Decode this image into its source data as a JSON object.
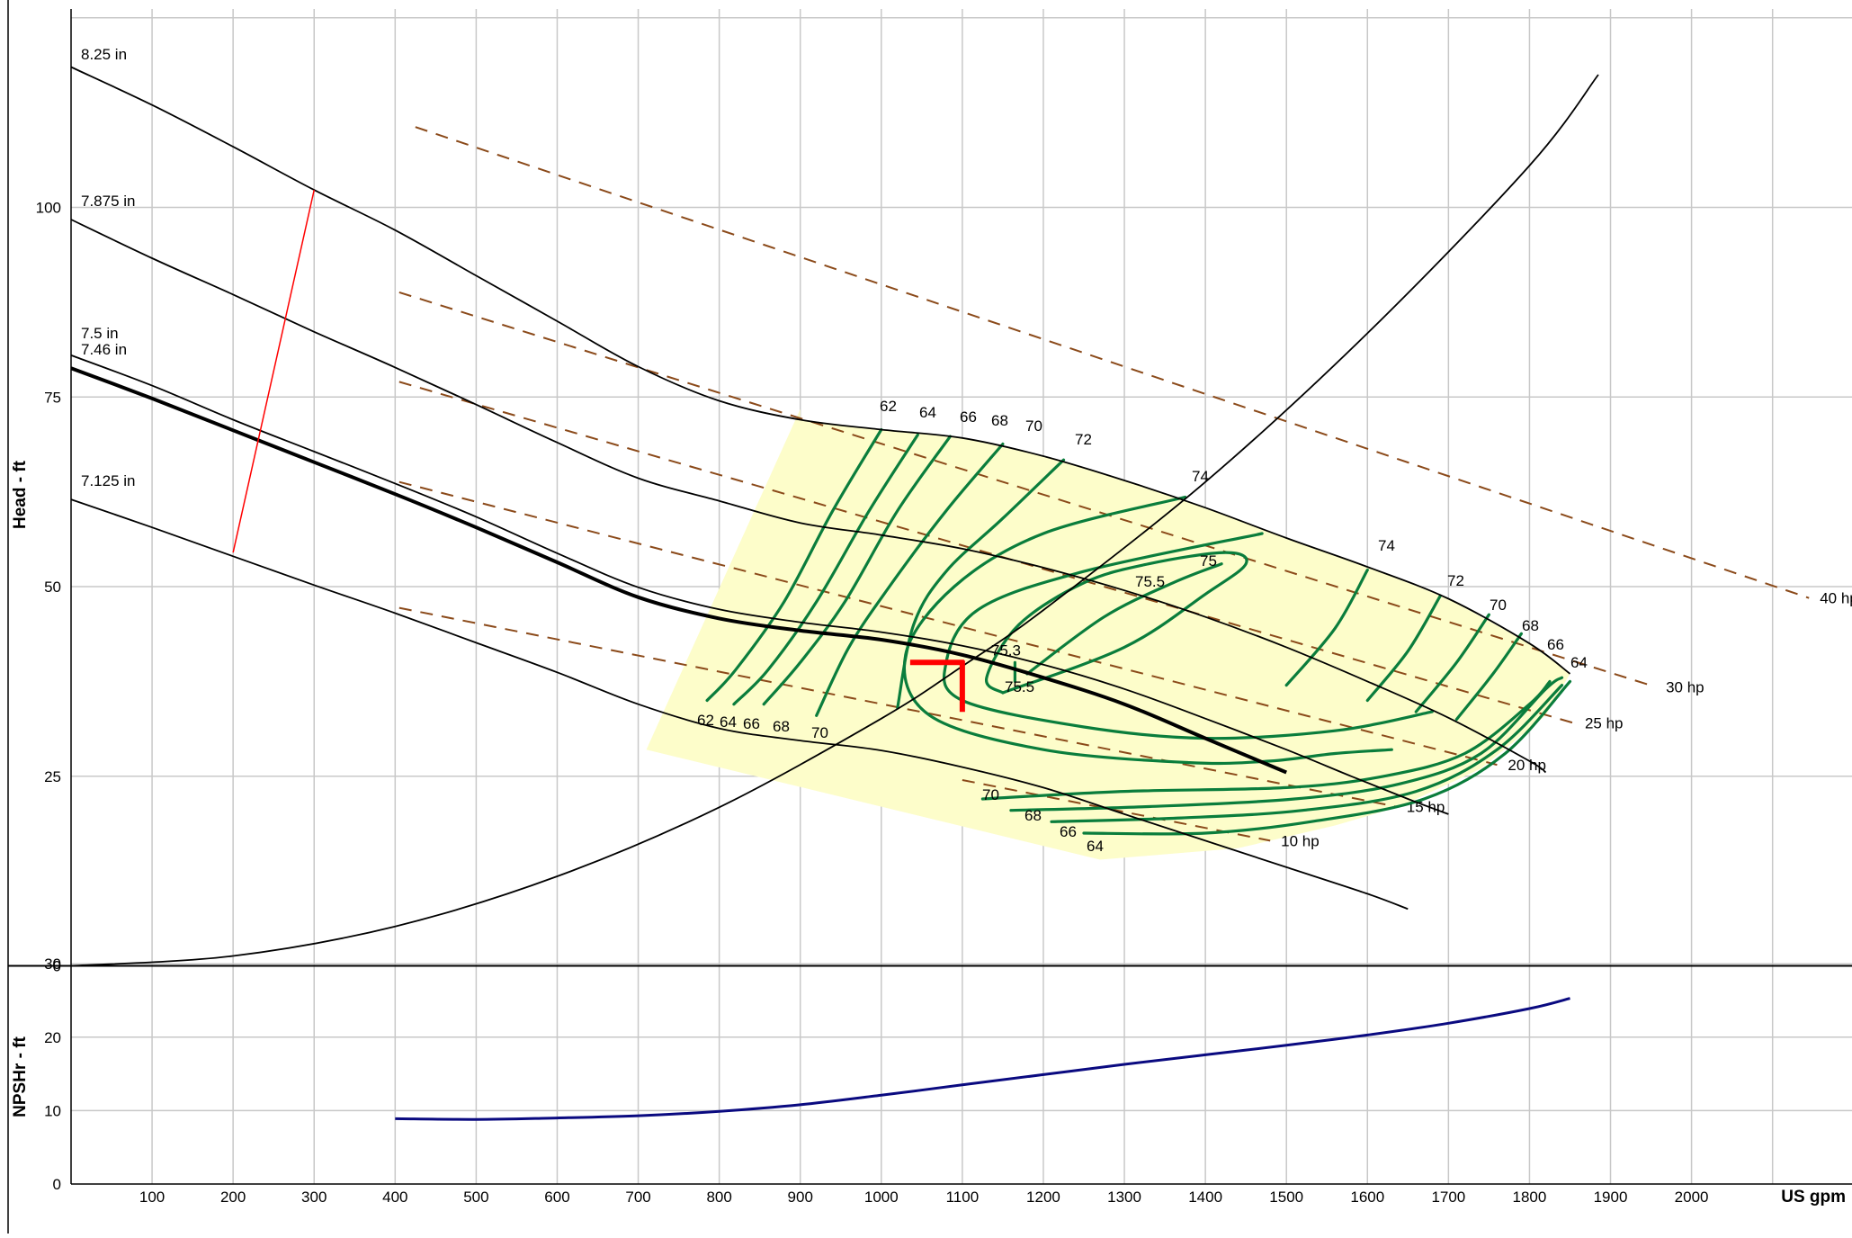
{
  "chart_data": {
    "type": "line",
    "title": "",
    "xlabel": "US gpm",
    "head_axis": {
      "label": "Head - ft",
      "ticks": [
        "0",
        "25",
        "50",
        "75",
        "100"
      ],
      "ylim": [
        0,
        126
      ]
    },
    "npsh_axis": {
      "label": "NPSHr - ft",
      "ticks": [
        "0",
        "10",
        "20",
        "30"
      ],
      "ylim": [
        0,
        31
      ]
    },
    "x_ticks": [
      "100",
      "200",
      "300",
      "400",
      "500",
      "600",
      "700",
      "800",
      "900",
      "1000",
      "1100",
      "1200",
      "1300",
      "1400",
      "1500",
      "1600",
      "1700",
      "1800",
      "1900",
      "2000"
    ],
    "xlim": [
      0,
      2210
    ],
    "grid": true,
    "impeller_curves": [
      {
        "name": "8.25 in",
        "x": [
          0,
          100,
          200,
          300,
          400,
          500,
          600,
          700,
          800,
          900,
          1000,
          1100,
          1200,
          1300,
          1400,
          1500,
          1600,
          1700,
          1800,
          1850
        ],
        "y": [
          118.5,
          113.5,
          108,
          102.3,
          97,
          91,
          85,
          79,
          74.5,
          72,
          70.7,
          69.6,
          67.2,
          64,
          60.4,
          56.4,
          52.6,
          48.4,
          42.5,
          38.5
        ]
      },
      {
        "name": "7.875 in",
        "x": [
          0,
          100,
          200,
          300,
          400,
          500,
          600,
          700,
          800,
          900,
          1000,
          1100,
          1200,
          1300,
          1400,
          1500,
          1600,
          1700,
          1800,
          1820
        ],
        "y": [
          98.4,
          93.3,
          88.5,
          83.6,
          78.9,
          74,
          69,
          64.3,
          61.3,
          58.4,
          56.8,
          55,
          52.5,
          49.5,
          46,
          42,
          37.5,
          32.7,
          27,
          25.5
        ]
      },
      {
        "name": "7.5 in",
        "x": [
          0,
          100,
          200,
          300,
          400,
          500,
          600,
          700,
          800,
          900,
          1000,
          1100,
          1200,
          1300,
          1400,
          1500,
          1580,
          1650,
          1700
        ],
        "y": [
          80.5,
          76.5,
          72,
          67.8,
          63.6,
          59.2,
          54.4,
          49.9,
          47,
          45.3,
          44,
          42.2,
          39.7,
          36.5,
          32.6,
          28.5,
          25,
          22,
          20
        ]
      },
      {
        "name": "7.46 in",
        "x": [
          0,
          100,
          200,
          300,
          400,
          500,
          600,
          700,
          800,
          900,
          1000,
          1100,
          1200,
          1300,
          1400,
          1500
        ],
        "y": [
          78.8,
          74.8,
          70.6,
          66.4,
          62.2,
          57.8,
          53.2,
          48.6,
          45.8,
          44.2,
          43,
          41,
          38,
          34.5,
          30,
          25.5
        ]
      },
      {
        "name": "7.125 in",
        "x": [
          0,
          100,
          200,
          300,
          400,
          500,
          600,
          700,
          800,
          900,
          1000,
          1100,
          1200,
          1300,
          1400,
          1500,
          1600,
          1650
        ],
        "y": [
          61.5,
          57.8,
          54,
          50.2,
          46.5,
          42.6,
          38.7,
          34.5,
          31.3,
          29.7,
          28.4,
          26.2,
          23.5,
          20,
          16.5,
          13,
          9.5,
          7.5
        ]
      }
    ],
    "system_curve": {
      "x": [
        0,
        200,
        400,
        600,
        800,
        1000,
        1100,
        1200,
        1400,
        1600,
        1800,
        1885
      ],
      "y": [
        0,
        1.3,
        5.2,
        11.8,
        20.9,
        32.6,
        39.5,
        46.9,
        63.8,
        83.4,
        105.5,
        117.5
      ]
    },
    "operating_point": {
      "x": 1100,
      "y": 40,
      "efficiency": "75.3"
    },
    "min_flow_line": {
      "x": [
        200,
        300
      ],
      "y": [
        54.5,
        102.3
      ]
    },
    "efficiency_region_corners": {
      "x": [
        900,
        1270,
        710
      ],
      "y": [
        73.4,
        14,
        28.5
      ]
    },
    "efficiency_labels_top": [
      "62",
      "64",
      "66",
      "68",
      "70",
      "72",
      "74"
    ],
    "efficiency_labels_bottom_left": [
      "62",
      "64",
      "66",
      "68",
      "70"
    ],
    "efficiency_labels_right": [
      "74",
      "72",
      "70",
      "68",
      "66",
      "64"
    ],
    "efficiency_labels_lower": [
      "70",
      "68",
      "66",
      "64"
    ],
    "efficiency_labels_center": [
      "75",
      "75.5",
      "75.5"
    ],
    "efficiency_contour_values": [
      "62",
      "64",
      "66",
      "68",
      "70",
      "72",
      "74",
      "75",
      "75.5"
    ],
    "power_lines": [
      {
        "name": "40 hp",
        "x": [
          425,
          2145
        ],
        "y": [
          110.6,
          48.5
        ]
      },
      {
        "name": "30 hp",
        "x": [
          405,
          1955
        ],
        "y": [
          88.8,
          36.8
        ]
      },
      {
        "name": "25 hp",
        "x": [
          405,
          1855
        ],
        "y": [
          77,
          32
        ]
      },
      {
        "name": "20 hp",
        "x": [
          405,
          1760
        ],
        "y": [
          63.8,
          26.5
        ]
      },
      {
        "name": "15 hp",
        "x": [
          405,
          1635
        ],
        "y": [
          47.2,
          21
        ]
      },
      {
        "name": "10 hp",
        "x": [
          1100,
          1480
        ],
        "y": [
          24.5,
          16.5
        ]
      }
    ],
    "npshr_curve": {
      "x": [
        400,
        500,
        600,
        700,
        800,
        900,
        1000,
        1100,
        1200,
        1300,
        1400,
        1500,
        1600,
        1700,
        1800,
        1850
      ],
      "y": [
        8.9,
        8.8,
        9,
        9.3,
        9.9,
        10.8,
        12.1,
        13.5,
        14.9,
        16.3,
        17.6,
        18.9,
        20.3,
        21.9,
        23.9,
        25.3
      ]
    },
    "colors": {
      "curve": "#000000",
      "operating_point": "#ff0000",
      "min_flow": "#ff0000",
      "efficiency": "#0a7d3c",
      "region_fill": "#fdfdca",
      "power": "#8b4a1a",
      "npshr": "#0a0a80",
      "grid": "#c8c8c8"
    }
  }
}
